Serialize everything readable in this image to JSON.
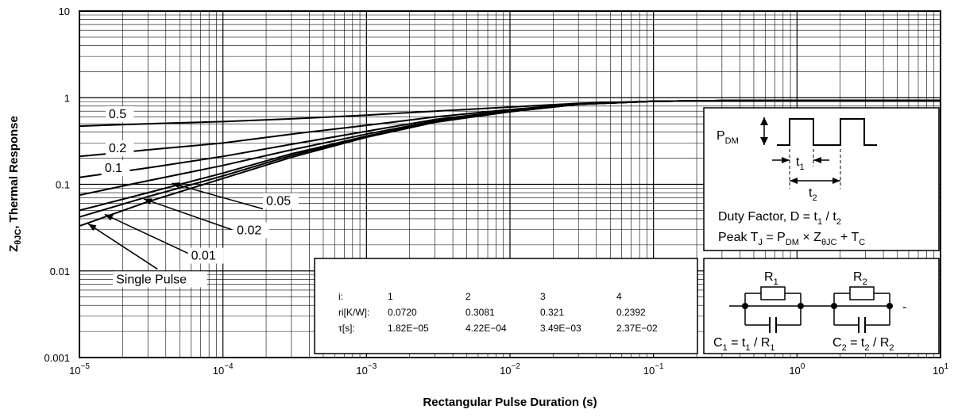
{
  "chart_data": {
    "type": "line",
    "title": "",
    "xlabel": "Rectangular Pulse Duration (s)",
    "ylabel_main": "Z",
    "ylabel_sub": "θJC",
    "ylabel_rest": ", Thermal Response",
    "x_scale": "log",
    "y_scale": "log",
    "xlim": [
      1e-05,
      10
    ],
    "ylim": [
      0.001,
      10
    ],
    "grid": true,
    "x_ticks": [
      {
        "value": 1e-05,
        "base": "10",
        "exp": "−5"
      },
      {
        "value": 0.0001,
        "base": "10",
        "exp": "−4"
      },
      {
        "value": 0.001,
        "base": "10",
        "exp": "−3"
      },
      {
        "value": 0.01,
        "base": "10",
        "exp": "−2"
      },
      {
        "value": 0.1,
        "base": "10",
        "exp": "−1"
      },
      {
        "value": 1,
        "base": "10",
        "exp": "0"
      },
      {
        "value": 10,
        "base": "10",
        "exp": "1"
      }
    ],
    "y_ticks": [
      {
        "value": 10,
        "label": "10"
      },
      {
        "value": 1,
        "label": "1"
      },
      {
        "value": 0.1,
        "label": "0.1"
      },
      {
        "value": 0.01,
        "label": "0.01"
      },
      {
        "value": 0.001,
        "label": "0.001"
      }
    ],
    "x": [
      1e-05,
      3e-05,
      0.0001,
      0.0003,
      0.001,
      0.003,
      0.01,
      0.03,
      0.1,
      0.3,
      1,
      3,
      10
    ],
    "series": [
      {
        "name": "0.5",
        "values": [
          0.47,
          0.5,
          0.53,
          0.57,
          0.63,
          0.7,
          0.78,
          0.86,
          0.91,
          0.925,
          0.93,
          0.93,
          0.93
        ]
      },
      {
        "name": "0.2",
        "values": [
          0.21,
          0.25,
          0.3,
          0.38,
          0.48,
          0.6,
          0.73,
          0.85,
          0.91,
          0.925,
          0.93,
          0.93,
          0.93
        ]
      },
      {
        "name": "0.1",
        "values": [
          0.12,
          0.155,
          0.21,
          0.29,
          0.41,
          0.56,
          0.71,
          0.84,
          0.91,
          0.925,
          0.93,
          0.93,
          0.93
        ]
      },
      {
        "name": "0.05",
        "values": [
          0.075,
          0.11,
          0.165,
          0.25,
          0.38,
          0.54,
          0.7,
          0.84,
          0.91,
          0.925,
          0.93,
          0.93,
          0.93
        ]
      },
      {
        "name": "0.02",
        "values": [
          0.05,
          0.08,
          0.135,
          0.225,
          0.36,
          0.53,
          0.69,
          0.84,
          0.91,
          0.925,
          0.93,
          0.93,
          0.93
        ]
      },
      {
        "name": "0.01",
        "values": [
          0.042,
          0.072,
          0.125,
          0.215,
          0.355,
          0.525,
          0.69,
          0.84,
          0.91,
          0.925,
          0.93,
          0.93,
          0.93
        ]
      },
      {
        "name": "Single Pulse",
        "values": [
          0.033,
          0.063,
          0.117,
          0.205,
          0.35,
          0.52,
          0.69,
          0.84,
          0.91,
          0.925,
          0.93,
          0.93,
          0.93
        ]
      }
    ],
    "curve_labels": [
      {
        "text": "0.5",
        "x": 1.6e-05,
        "y": 0.58
      },
      {
        "text": "0.2",
        "x": 1.6e-05,
        "y": 0.235
      },
      {
        "text": "0.1",
        "x": 1.5e-05,
        "y": 0.138
      },
      {
        "text": "0.05",
        "x": 0.0002,
        "y": 0.058
      },
      {
        "text": "0.02",
        "x": 0.000125,
        "y": 0.0265
      },
      {
        "text": "0.01",
        "x": 6e-05,
        "y": 0.0135
      },
      {
        "text": "Single Pulse",
        "x": 1.8e-05,
        "y": 0.0072
      }
    ],
    "arrows": [
      {
        "from_x": 0.00019,
        "from_y": 0.052,
        "to_x": 4.4e-05,
        "to_y": 0.103
      },
      {
        "from_x": 0.000115,
        "from_y": 0.03,
        "to_x": 2.8e-05,
        "to_y": 0.068
      },
      {
        "from_x": 5.7e-05,
        "from_y": 0.016,
        "to_x": 1.5e-05,
        "to_y": 0.045
      },
      {
        "from_x": 3.5e-05,
        "from_y": 0.0105,
        "to_x": 1.15e-05,
        "to_y": 0.035
      }
    ],
    "pulse_box": {
      "pdm_main": "P",
      "pdm_sub": "DM",
      "t1_main": "t",
      "t1_sub": "1",
      "t2_main": "t",
      "t2_sub": "2",
      "duty_a": "Duty Factor, D = t",
      "duty_sub1": "1",
      "duty_b": " / t",
      "duty_sub2": "2",
      "peak_a": "Peak T",
      "peak_sub_j": "J",
      "peak_b": " = P",
      "peak_sub_dm": "DM",
      "peak_c": " × Z",
      "peak_sub_theta": "θJC",
      "peak_d": " + T",
      "peak_sub_c": "C"
    },
    "rc_box": {
      "r1_main": "R",
      "r1_sub": "1",
      "r2_main": "R",
      "r2_sub": "2",
      "c1_main": "C",
      "c1_sub1": "1",
      "c1_eq": " = t",
      "c1_sub2": "1",
      "c1_div": " / R",
      "c1_sub3": "1",
      "c2_main": "C",
      "c2_sub1": "2",
      "c2_eq": " = t",
      "c2_sub2": "2",
      "c2_div": " / R",
      "c2_sub3": "2",
      "dash": "-"
    },
    "rc_table": {
      "headers": [
        "i:",
        "1",
        "2",
        "3",
        "4"
      ],
      "rows": [
        [
          "ri[K/W]:",
          "0.0720",
          "0.3081",
          "0.321",
          "0.2392"
        ],
        [
          "τ[s]:",
          "1.82E−05",
          "4.22E−04",
          "3.49E−03",
          "2.37E−02"
        ]
      ]
    }
  }
}
